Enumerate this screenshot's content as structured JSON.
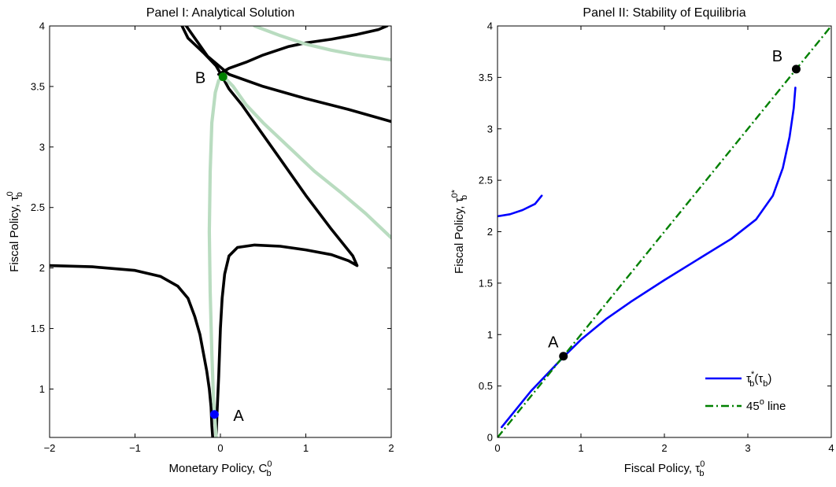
{
  "chart_data": [
    {
      "type": "line",
      "title": "Panel I: Analytical Solution",
      "xlabel": {
        "main": "Monetary Policy, C",
        "sub": "b",
        "sup": "0"
      },
      "ylabel": {
        "main": "Fiscal Policy, τ",
        "sub": "b",
        "sup": "0"
      },
      "xlim": [
        -2,
        2
      ],
      "ylim": [
        0.6,
        4
      ],
      "xticks": [
        "−2",
        "−1",
        "0",
        "1",
        "2"
      ],
      "xtick_values": [
        -2,
        -1,
        0,
        1,
        2
      ],
      "yticks": [
        "1",
        "1.5",
        "2",
        "2.5",
        "3",
        "3.5",
        "4"
      ],
      "ytick_values": [
        1,
        1.5,
        2,
        2.5,
        3,
        3.5,
        4
      ],
      "grid": false,
      "colors": {
        "black_curves": "#000000",
        "light_curves": "#b9dcc0",
        "point_A": "#0000ff",
        "point_B": "#008000"
      },
      "series": [
        {
          "color": "#000000",
          "points": [
            [
              -2,
              2.02
            ],
            [
              -1.5,
              2.01
            ],
            [
              -1,
              1.98
            ],
            [
              -0.7,
              1.93
            ],
            [
              -0.5,
              1.85
            ],
            [
              -0.38,
              1.75
            ],
            [
              -0.3,
              1.6
            ],
            [
              -0.24,
              1.45
            ],
            [
              -0.2,
              1.3
            ],
            [
              -0.16,
              1.15
            ],
            [
              -0.13,
              1.0
            ],
            [
              -0.11,
              0.85
            ],
            [
              -0.1,
              0.7
            ],
            [
              -0.09,
              0.6
            ]
          ]
        },
        {
          "color": "#000000",
          "points": [
            [
              -0.05,
              0.6
            ],
            [
              -0.04,
              0.8
            ],
            [
              -0.02,
              1.1
            ],
            [
              0,
              1.5
            ],
            [
              0.02,
              1.75
            ],
            [
              0.05,
              1.95
            ],
            [
              0.1,
              2.1
            ],
            [
              0.2,
              2.17
            ],
            [
              0.4,
              2.19
            ],
            [
              0.7,
              2.18
            ],
            [
              1.0,
              2.15
            ],
            [
              1.3,
              2.11
            ],
            [
              1.5,
              2.06
            ],
            [
              1.6,
              2.02
            ],
            [
              1.55,
              2.1
            ],
            [
              1.3,
              2.32
            ],
            [
              1.0,
              2.6
            ],
            [
              0.7,
              2.9
            ],
            [
              0.45,
              3.15
            ],
            [
              0.25,
              3.35
            ],
            [
              0.1,
              3.48
            ],
            [
              0.03,
              3.57
            ],
            [
              -0.05,
              3.67
            ],
            [
              -0.2,
              3.78
            ],
            [
              -0.38,
              3.9
            ],
            [
              -0.45,
              4.0
            ]
          ]
        },
        {
          "color": "#000000",
          "points": [
            [
              -0.02,
              3.6
            ],
            [
              0.1,
              3.65
            ],
            [
              0.3,
              3.7
            ],
            [
              0.5,
              3.76
            ],
            [
              0.8,
              3.83
            ],
            [
              1.0,
              3.86
            ],
            [
              1.3,
              3.89
            ],
            [
              1.6,
              3.93
            ],
            [
              1.85,
              3.97
            ],
            [
              1.95,
              4.0
            ]
          ]
        },
        {
          "color": "#000000",
          "points": [
            [
              -0.4,
              4.0
            ],
            [
              -0.3,
              3.9
            ],
            [
              -0.15,
              3.75
            ],
            [
              0.1,
              3.6
            ],
            [
              0.5,
              3.5
            ],
            [
              1.0,
              3.4
            ],
            [
              1.5,
              3.31
            ],
            [
              2.0,
              3.21
            ]
          ]
        },
        {
          "color": "#b9dcc0",
          "points": [
            [
              0.4,
              4.0
            ],
            [
              0.7,
              3.92
            ],
            [
              1.0,
              3.85
            ],
            [
              1.3,
              3.8
            ],
            [
              1.6,
              3.76
            ],
            [
              2.0,
              3.72
            ]
          ]
        },
        {
          "color": "#b9dcc0",
          "points": [
            [
              -0.05,
              0.6
            ],
            [
              -0.08,
              0.9
            ],
            [
              -0.1,
              1.3
            ],
            [
              -0.12,
              1.8
            ],
            [
              -0.13,
              2.3
            ],
            [
              -0.12,
              2.8
            ],
            [
              -0.1,
              3.2
            ],
            [
              -0.06,
              3.45
            ],
            [
              -0.02,
              3.55
            ],
            [
              0.04,
              3.58
            ],
            [
              0.15,
              3.5
            ],
            [
              0.3,
              3.35
            ],
            [
              0.5,
              3.2
            ],
            [
              0.8,
              3.0
            ],
            [
              1.1,
              2.8
            ],
            [
              1.4,
              2.63
            ],
            [
              1.7,
              2.45
            ],
            [
              2.0,
              2.25
            ]
          ]
        }
      ],
      "points": [
        {
          "label": "A",
          "x": -0.07,
          "y": 0.79,
          "color": "#0000ff"
        },
        {
          "label": "B",
          "x": 0.03,
          "y": 3.58,
          "color": "#008000"
        }
      ]
    },
    {
      "type": "line",
      "title": "Panel II: Stability of Equilibria",
      "xlabel": {
        "main": "Fiscal Policy, τ",
        "sub": "b",
        "sup": "0"
      },
      "ylabel": {
        "main": "Fiscal Policy, τ",
        "sub": "b",
        "sup": "0*"
      },
      "xlim": [
        0,
        4
      ],
      "ylim": [
        0,
        4
      ],
      "xticks": [
        "0",
        "1",
        "2",
        "3",
        "4"
      ],
      "xtick_values": [
        0,
        1,
        2,
        3,
        4
      ],
      "yticks": [
        "0",
        "0.5",
        "1",
        "1.5",
        "2",
        "2.5",
        "3",
        "3.5",
        "4"
      ],
      "ytick_values": [
        0,
        0.5,
        1,
        1.5,
        2,
        2.5,
        3,
        3.5,
        4
      ],
      "grid": false,
      "legend": {
        "placement": "bottom-right",
        "entries": [
          {
            "main": "τ",
            "sup": "*",
            "sub": "b",
            "rest": "(τ",
            "sub2": "b",
            "close": ")",
            "color": "#0000ff",
            "dash": "solid"
          },
          {
            "main": "45",
            "sup": "o",
            "rest": " line",
            "color": "#008000",
            "dash": "dashdot"
          }
        ]
      },
      "series": [
        {
          "color": "#0000ff",
          "dash": "solid",
          "points": [
            [
              0.05,
              0.1
            ],
            [
              0.2,
              0.25
            ],
            [
              0.4,
              0.45
            ],
            [
              0.6,
              0.62
            ],
            [
              0.8,
              0.79
            ],
            [
              1.0,
              0.95
            ],
            [
              1.3,
              1.15
            ],
            [
              1.6,
              1.32
            ],
            [
              2.0,
              1.53
            ],
            [
              2.4,
              1.73
            ],
            [
              2.8,
              1.93
            ],
            [
              3.1,
              2.12
            ],
            [
              3.3,
              2.35
            ],
            [
              3.42,
              2.62
            ],
            [
              3.5,
              2.92
            ],
            [
              3.55,
              3.2
            ],
            [
              3.57,
              3.4
            ]
          ]
        },
        {
          "color": "#0000ff",
          "dash": "solid",
          "points": [
            [
              0,
              2.15
            ],
            [
              0.15,
              2.17
            ],
            [
              0.3,
              2.21
            ],
            [
              0.45,
              2.27
            ],
            [
              0.53,
              2.35
            ]
          ]
        },
        {
          "color": "#008000",
          "dash": "dashdot",
          "points": [
            [
              0,
              0
            ],
            [
              4,
              4
            ]
          ]
        }
      ],
      "points": [
        {
          "label": "A",
          "x": 0.79,
          "y": 0.79,
          "color": "#000000"
        },
        {
          "label": "B",
          "x": 3.58,
          "y": 3.58,
          "color": "#000000"
        }
      ]
    }
  ]
}
